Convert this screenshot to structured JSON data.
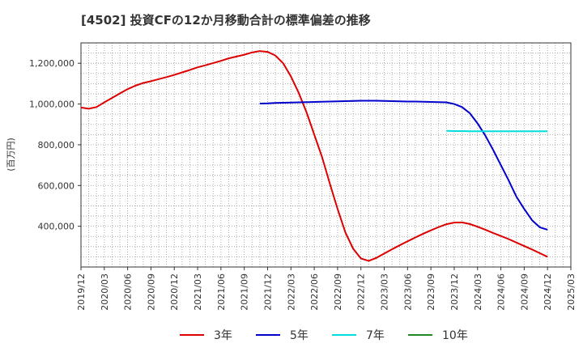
{
  "chart_data": {
    "type": "line",
    "title": "[4502]  投資CFの12か月移動合計の標準偏差の推移",
    "ylabel": "(百万円)",
    "xlabel": "",
    "ylim": [
      200000,
      1300000
    ],
    "y_ticks": [
      {
        "value": 400000,
        "label": "400,000"
      },
      {
        "value": 600000,
        "label": "600,000"
      },
      {
        "value": 800000,
        "label": "800,000"
      },
      {
        "value": 1000000,
        "label": "1,000,000"
      },
      {
        "value": 1200000,
        "label": "1,200,000"
      }
    ],
    "x_ticks": [
      "2019/12",
      "2020/03",
      "2020/06",
      "2020/09",
      "2020/12",
      "2021/03",
      "2021/06",
      "2021/09",
      "2021/12",
      "2022/03",
      "2022/06",
      "2022/09",
      "2022/12",
      "2023/03",
      "2023/06",
      "2023/09",
      "2023/12",
      "2024/03",
      "2024/06",
      "2024/09",
      "2024/12",
      "2025/03"
    ],
    "grid": true,
    "legend_position": "bottom",
    "series": [
      {
        "name": "3年",
        "color": "#dd0000",
        "x": [
          "2019/12",
          "2020/01",
          "2020/02",
          "2020/03",
          "2020/04",
          "2020/05",
          "2020/06",
          "2020/07",
          "2020/08",
          "2020/09",
          "2020/10",
          "2020/11",
          "2020/12",
          "2021/01",
          "2021/02",
          "2021/03",
          "2021/04",
          "2021/05",
          "2021/06",
          "2021/07",
          "2021/08",
          "2021/09",
          "2021/10",
          "2021/11",
          "2021/12",
          "2022/01",
          "2022/02",
          "2022/03",
          "2022/04",
          "2022/05",
          "2022/06",
          "2022/07",
          "2022/08",
          "2022/09",
          "2022/10",
          "2022/11",
          "2022/12",
          "2023/01",
          "2023/02",
          "2023/03",
          "2023/04",
          "2023/05",
          "2023/06",
          "2023/07",
          "2023/08",
          "2023/09",
          "2023/10",
          "2023/11",
          "2023/12",
          "2024/01",
          "2024/02",
          "2024/03",
          "2024/04",
          "2024/05",
          "2024/06",
          "2024/07",
          "2024/08",
          "2024/09",
          "2024/10",
          "2024/11",
          "2024/12"
        ],
        "values": [
          983000,
          977000,
          985000,
          1008000,
          1030000,
          1052000,
          1073000,
          1090000,
          1103000,
          1112000,
          1122000,
          1132000,
          1143000,
          1155000,
          1167000,
          1180000,
          1190000,
          1201000,
          1212000,
          1224000,
          1233000,
          1242000,
          1253000,
          1260000,
          1256000,
          1238000,
          1200000,
          1135000,
          1055000,
          960000,
          850000,
          740000,
          610000,
          485000,
          370000,
          290000,
          242000,
          230000,
          245000,
          266000,
          287000,
          307000,
          326000,
          345000,
          363000,
          380000,
          396000,
          410000,
          418000,
          419000,
          411000,
          398000,
          383000,
          367000,
          352000,
          337000,
          320000,
          303000,
          286000,
          268000,
          250000
        ]
      },
      {
        "name": "5年",
        "color": "#0000cc",
        "x": [
          "2021/11",
          "2021/12",
          "2022/01",
          "2022/02",
          "2022/03",
          "2022/04",
          "2022/05",
          "2022/06",
          "2022/07",
          "2022/08",
          "2022/09",
          "2022/10",
          "2022/11",
          "2022/12",
          "2023/01",
          "2023/02",
          "2023/03",
          "2023/04",
          "2023/05",
          "2023/06",
          "2023/07",
          "2023/08",
          "2023/09",
          "2023/10",
          "2023/11",
          "2023/12",
          "2024/01",
          "2024/02",
          "2024/03",
          "2024/04",
          "2024/05",
          "2024/06",
          "2024/07",
          "2024/08",
          "2024/09",
          "2024/10",
          "2024/11",
          "2024/12"
        ],
        "values": [
          1002000,
          1003000,
          1005000,
          1006000,
          1007000,
          1008000,
          1009000,
          1010000,
          1011000,
          1012000,
          1013000,
          1014000,
          1015000,
          1016000,
          1016000,
          1016000,
          1015000,
          1014000,
          1013000,
          1012000,
          1012000,
          1011000,
          1010000,
          1009000,
          1008000,
          1000000,
          985000,
          955000,
          905000,
          845000,
          775000,
          700000,
          625000,
          545000,
          485000,
          430000,
          395000,
          383000
        ]
      },
      {
        "name": "7年",
        "color": "#00dddd",
        "x": [
          "2023/11",
          "2023/12",
          "2024/01",
          "2024/02",
          "2024/03",
          "2024/04",
          "2024/05",
          "2024/06",
          "2024/07",
          "2024/08",
          "2024/09",
          "2024/10",
          "2024/11",
          "2024/12"
        ],
        "values": [
          868000,
          867000,
          867000,
          866000,
          866000,
          866000,
          866000,
          866000,
          866000,
          866000,
          866000,
          866000,
          866000,
          866000
        ]
      },
      {
        "name": "10年",
        "color": "#228822",
        "x": [],
        "values": []
      }
    ]
  }
}
